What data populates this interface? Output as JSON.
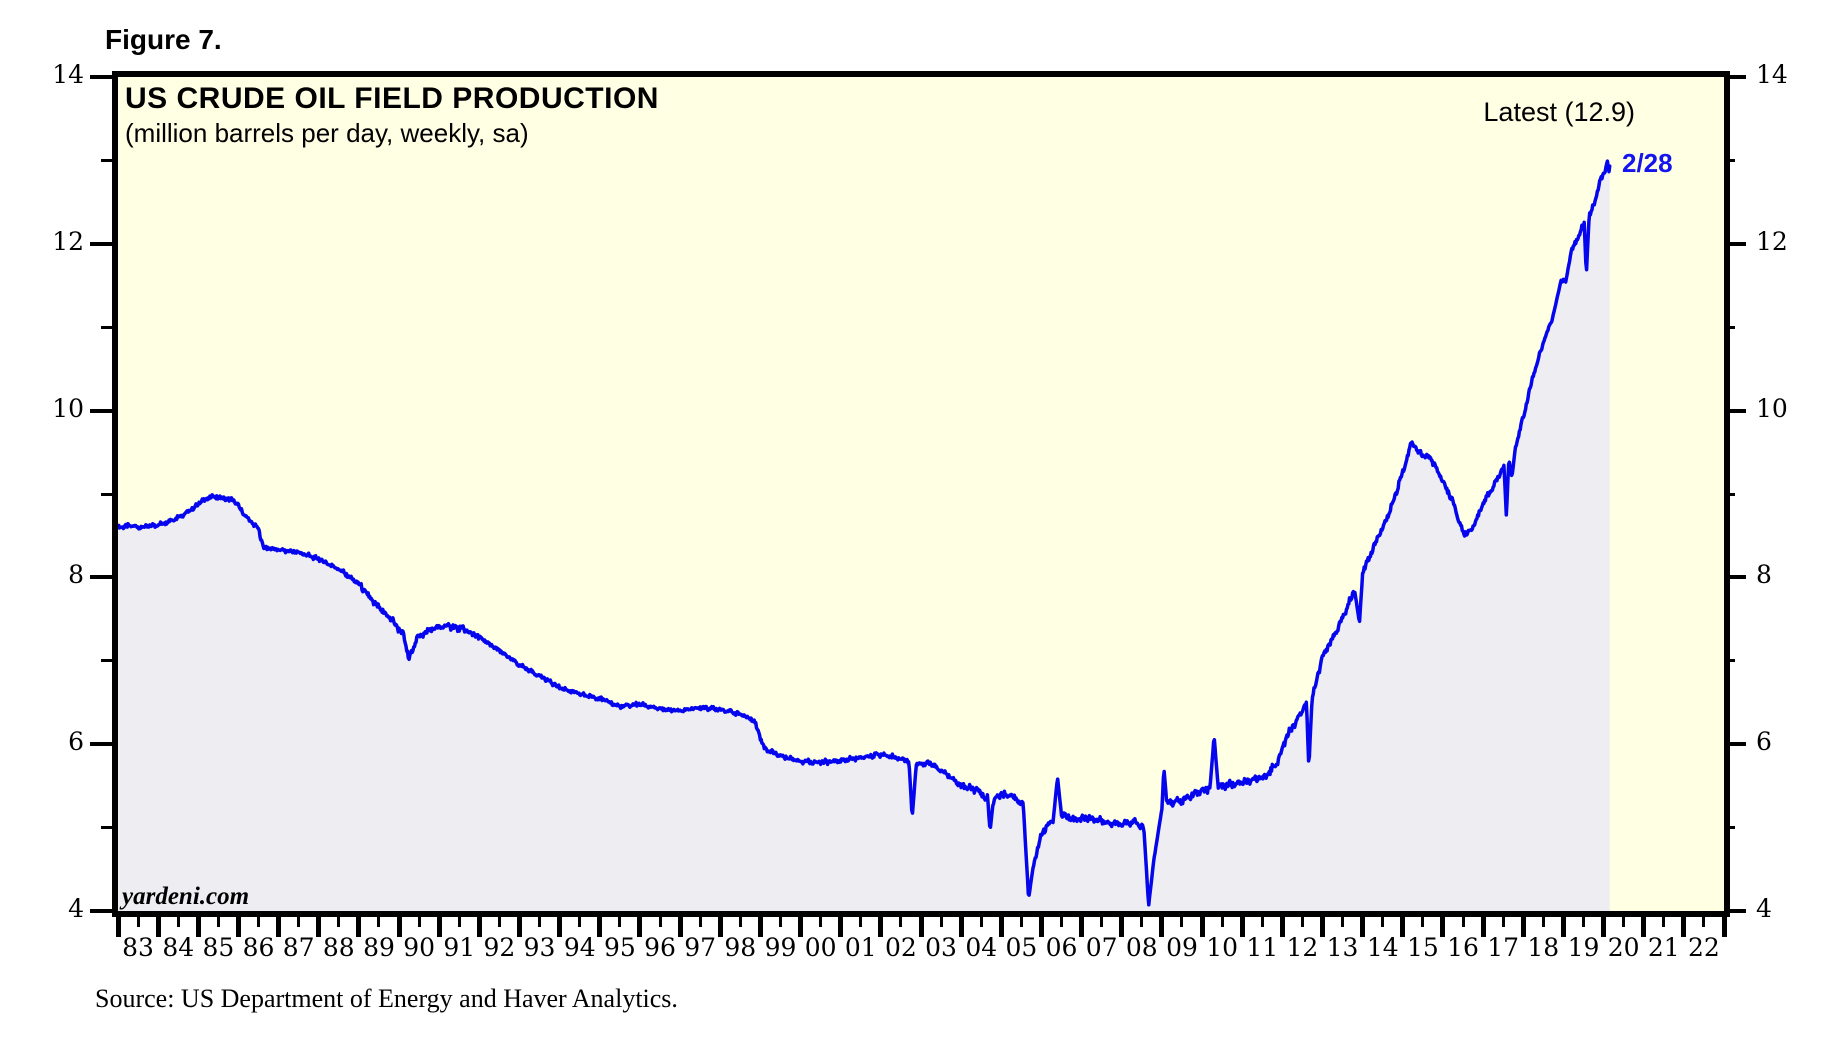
{
  "figure_label": "Figure 7.",
  "chart": {
    "title": "US CRUDE OIL FIELD PRODUCTION",
    "subtitle": "(million barrels per day, weekly, sa)",
    "latest_label": "Latest (12.9)",
    "end_label": "2/28",
    "watermark": "yardeni.com",
    "source": "Source: US Department of Energy and Haver Analytics.",
    "colors": {
      "plot_background": "#FFFFE3",
      "area_fill": "#EDEDF2",
      "line": "#0505EE",
      "frame": "#000000",
      "end_label_blue": "#1414EE"
    }
  },
  "chart_data": {
    "type": "line",
    "title": "US CRUDE OIL FIELD PRODUCTION",
    "subtitle": "(million barrels per day, weekly, sa)",
    "series_name": "US crude oil field production, weekly, seasonally adjusted (million barrels per day)",
    "x_start": 1983,
    "x_end": 2023,
    "ylim": [
      4,
      14
    ],
    "y_major_ticks": [
      4,
      6,
      8,
      10,
      12,
      14
    ],
    "y_minor_ticks": [
      5,
      7,
      9,
      11,
      13
    ],
    "y_tick_labels": [
      "4",
      "6",
      "8",
      "10",
      "12",
      "14"
    ],
    "x_tick_labels": [
      "83",
      "84",
      "85",
      "86",
      "87",
      "88",
      "89",
      "90",
      "91",
      "92",
      "93",
      "94",
      "95",
      "96",
      "97",
      "98",
      "99",
      "00",
      "01",
      "02",
      "03",
      "04",
      "05",
      "06",
      "07",
      "08",
      "09",
      "10",
      "11",
      "12",
      "13",
      "14",
      "15",
      "16",
      "17",
      "18",
      "19",
      "20",
      "21",
      "22"
    ],
    "grid": false,
    "legend": "none",
    "latest_value": 12.9,
    "latest_date_label": "2/28",
    "keypoints": [
      [
        1983.0,
        8.6
      ],
      [
        1983.3,
        8.62
      ],
      [
        1983.6,
        8.6
      ],
      [
        1984.0,
        8.63
      ],
      [
        1984.4,
        8.7
      ],
      [
        1984.8,
        8.8
      ],
      [
        1985.1,
        8.92
      ],
      [
        1985.35,
        8.97
      ],
      [
        1985.6,
        8.95
      ],
      [
        1985.9,
        8.92
      ],
      [
        1986.2,
        8.72
      ],
      [
        1986.5,
        8.58
      ],
      [
        1986.62,
        8.36
      ],
      [
        1987.0,
        8.33
      ],
      [
        1987.5,
        8.3
      ],
      [
        1988.0,
        8.22
      ],
      [
        1988.5,
        8.1
      ],
      [
        1989.0,
        7.92
      ],
      [
        1989.4,
        7.68
      ],
      [
        1989.8,
        7.5
      ],
      [
        1990.1,
        7.32
      ],
      [
        1990.25,
        7.02
      ],
      [
        1990.45,
        7.28
      ],
      [
        1990.8,
        7.38
      ],
      [
        1991.2,
        7.42
      ],
      [
        1991.6,
        7.38
      ],
      [
        1992.0,
        7.28
      ],
      [
        1992.5,
        7.12
      ],
      [
        1993.0,
        6.95
      ],
      [
        1993.5,
        6.82
      ],
      [
        1994.0,
        6.68
      ],
      [
        1994.5,
        6.6
      ],
      [
        1995.0,
        6.55
      ],
      [
        1995.5,
        6.45
      ],
      [
        1996.0,
        6.48
      ],
      [
        1996.5,
        6.42
      ],
      [
        1997.0,
        6.4
      ],
      [
        1997.5,
        6.44
      ],
      [
        1998.0,
        6.42
      ],
      [
        1998.5,
        6.36
      ],
      [
        1998.85,
        6.28
      ],
      [
        1999.1,
        5.95
      ],
      [
        1999.5,
        5.86
      ],
      [
        2000.0,
        5.8
      ],
      [
        2000.5,
        5.78
      ],
      [
        2001.0,
        5.8
      ],
      [
        2001.5,
        5.84
      ],
      [
        2002.0,
        5.88
      ],
      [
        2002.4,
        5.84
      ],
      [
        2002.7,
        5.8
      ],
      [
        2002.78,
        5.12
      ],
      [
        2002.88,
        5.75
      ],
      [
        2003.2,
        5.78
      ],
      [
        2003.6,
        5.65
      ],
      [
        2004.0,
        5.5
      ],
      [
        2004.4,
        5.44
      ],
      [
        2004.66,
        5.35
      ],
      [
        2004.72,
        4.96
      ],
      [
        2004.8,
        5.32
      ],
      [
        2005.0,
        5.4
      ],
      [
        2005.3,
        5.38
      ],
      [
        2005.55,
        5.25
      ],
      [
        2005.68,
        4.15
      ],
      [
        2005.8,
        4.55
      ],
      [
        2006.0,
        4.92
      ],
      [
        2006.3,
        5.12
      ],
      [
        2006.4,
        5.6
      ],
      [
        2006.5,
        5.15
      ],
      [
        2006.8,
        5.1
      ],
      [
        2007.2,
        5.12
      ],
      [
        2007.6,
        5.06
      ],
      [
        2008.0,
        5.04
      ],
      [
        2008.3,
        5.08
      ],
      [
        2008.55,
        5.0
      ],
      [
        2008.67,
        4.06
      ],
      [
        2008.8,
        4.62
      ],
      [
        2009.0,
        5.22
      ],
      [
        2009.05,
        5.72
      ],
      [
        2009.12,
        5.3
      ],
      [
        2009.5,
        5.32
      ],
      [
        2009.9,
        5.42
      ],
      [
        2010.2,
        5.48
      ],
      [
        2010.3,
        6.1
      ],
      [
        2010.4,
        5.5
      ],
      [
        2010.8,
        5.52
      ],
      [
        2011.2,
        5.56
      ],
      [
        2011.6,
        5.62
      ],
      [
        2011.9,
        5.8
      ],
      [
        2012.1,
        6.1
      ],
      [
        2012.4,
        6.32
      ],
      [
        2012.6,
        6.5
      ],
      [
        2012.66,
        5.72
      ],
      [
        2012.74,
        6.55
      ],
      [
        2013.0,
        7.05
      ],
      [
        2013.4,
        7.4
      ],
      [
        2013.8,
        7.85
      ],
      [
        2013.92,
        7.45
      ],
      [
        2014.0,
        8.05
      ],
      [
        2014.3,
        8.4
      ],
      [
        2014.6,
        8.7
      ],
      [
        2014.9,
        9.12
      ],
      [
        2015.1,
        9.42
      ],
      [
        2015.22,
        9.62
      ],
      [
        2015.4,
        9.5
      ],
      [
        2015.7,
        9.42
      ],
      [
        2016.0,
        9.15
      ],
      [
        2016.25,
        8.9
      ],
      [
        2016.5,
        8.52
      ],
      [
        2016.7,
        8.56
      ],
      [
        2017.0,
        8.88
      ],
      [
        2017.2,
        9.05
      ],
      [
        2017.4,
        9.22
      ],
      [
        2017.52,
        9.35
      ],
      [
        2017.58,
        8.72
      ],
      [
        2017.64,
        9.42
      ],
      [
        2017.72,
        9.2
      ],
      [
        2017.8,
        9.55
      ],
      [
        2018.0,
        9.92
      ],
      [
        2018.25,
        10.42
      ],
      [
        2018.5,
        10.82
      ],
      [
        2018.75,
        11.15
      ],
      [
        2018.95,
        11.58
      ],
      [
        2019.05,
        11.52
      ],
      [
        2019.2,
        11.92
      ],
      [
        2019.4,
        12.12
      ],
      [
        2019.52,
        12.25
      ],
      [
        2019.57,
        11.62
      ],
      [
        2019.64,
        12.32
      ],
      [
        2019.8,
        12.55
      ],
      [
        2019.95,
        12.8
      ],
      [
        2020.05,
        12.9
      ],
      [
        2020.1,
        13.0
      ],
      [
        2020.13,
        12.85
      ],
      [
        2020.16,
        12.95
      ]
    ]
  }
}
